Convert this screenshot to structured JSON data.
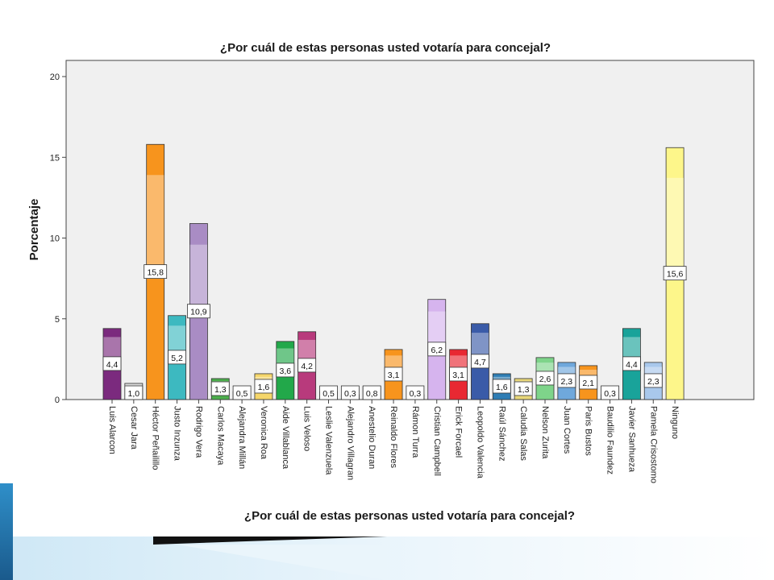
{
  "chart_data": {
    "type": "bar",
    "title": "¿Por cuál de estas personas usted votaría para concejal?",
    "xlabel": "¿Por cuál de estas personas usted votaría para concejal?",
    "ylabel": "Porcentaje",
    "ylim": [
      0,
      21
    ],
    "yticks": [
      "0",
      "5",
      "10",
      "15",
      "20"
    ],
    "grid": false,
    "categories": [
      "Luis Alarcon",
      "Cesar Jara",
      "Héctor Peñailillo",
      "Justo Inzunza",
      "Rodrigo Vera",
      "Carlos Macaya",
      "Alejandra Millán",
      "Veronica Roa",
      "Aide Villablanca",
      "Luis Veloso",
      "Leslie Valenzuela",
      "Alejandro Villagran",
      "Anestelio Duran",
      "Reinaldo Flores",
      "Rámon Turra",
      "Cristian Campbell",
      "Erick Forcael",
      "Leopoldo Valencia",
      "Raúl Sánchez",
      "Caludia Salas",
      "Nelson Zurita",
      "Juan Cortes",
      "Paris Bustos",
      "Baudilio Faundez",
      "Javier Sanhueza",
      "Pamela Crisostomo",
      "Ninguno"
    ],
    "values": [
      4.4,
      1.0,
      15.8,
      5.2,
      10.9,
      1.3,
      0.5,
      1.6,
      3.6,
      4.2,
      0.5,
      0.3,
      0.8,
      3.1,
      0.3,
      6.2,
      3.1,
      4.7,
      1.6,
      1.3,
      2.6,
      2.3,
      2.1,
      0.3,
      4.4,
      2.3,
      15.6
    ],
    "data_labels": [
      "4,4",
      "1,0",
      "15,8",
      "5,2",
      "10,9",
      "1,3",
      "0,5",
      "1,6",
      "3,6",
      "4,2",
      "0,5",
      "0,3",
      "0,8",
      "3,1",
      "0,3",
      "6,2",
      "3,1",
      "4,7",
      "1,6",
      "1,3",
      "2,6",
      "2,3",
      "2,1",
      "0,3",
      "4,4",
      "2,3",
      "15,6"
    ],
    "colors": [
      "#7b2a7e",
      "#d9d9d9",
      "#f7941d",
      "#3db9c0",
      "#a98cc4",
      "#4cae4c",
      "#d9d9d9",
      "#f5d66a",
      "#22a84a",
      "#b83a7c",
      "#d9d9d9",
      "#d9d9d9",
      "#d9d9d9",
      "#f7941d",
      "#d9d9d9",
      "#d6b4ee",
      "#e82832",
      "#3a5ba8",
      "#2f7db4",
      "#e8d77a",
      "#7ed48a",
      "#6fa8dc",
      "#f7941d",
      "#d9d9d9",
      "#19a39a",
      "#a9c8ec",
      "#fdf68a"
    ]
  }
}
